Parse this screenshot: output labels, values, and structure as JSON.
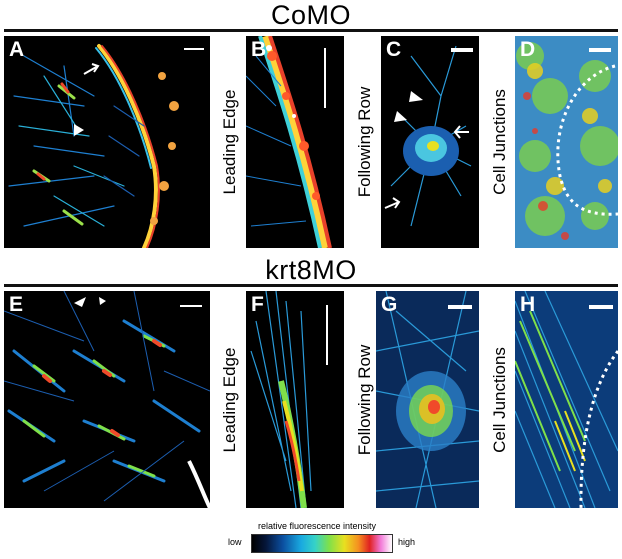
{
  "titles": {
    "top": "CoMO",
    "bottom": "krt8MO"
  },
  "panels": {
    "A": {
      "letter": "A"
    },
    "B": {
      "letter": "B",
      "side_label": "Leading Edge"
    },
    "C": {
      "letter": "C",
      "side_label": "Following Row"
    },
    "D": {
      "letter": "D",
      "side_label": "Cell Junctions"
    },
    "E": {
      "letter": "E"
    },
    "F": {
      "letter": "F",
      "side_label": "Leading Edge"
    },
    "G": {
      "letter": "G",
      "side_label": "Following Row"
    },
    "H": {
      "letter": "H",
      "side_label": "Cell Junctions"
    }
  },
  "colorbar": {
    "caption": "relative fluorescence intensity",
    "low": "low",
    "high": "high",
    "stops": [
      "#000000",
      "#0b4fa0",
      "#19a9e0",
      "#7fe04a",
      "#e8e020",
      "#f59020",
      "#e02222",
      "#f27ad8",
      "#ffffff"
    ]
  }
}
